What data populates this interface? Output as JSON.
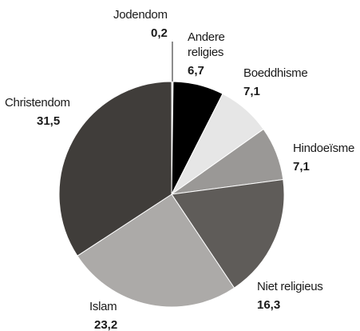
{
  "chart_data": {
    "type": "pie",
    "slices": [
      {
        "label": "Jodendom",
        "value": 0.2,
        "value_text": "0,2",
        "color": "#d9d9d9"
      },
      {
        "label": "Andere religies",
        "label_lines": [
          "Andere",
          "religies"
        ],
        "value": 6.7,
        "value_text": "6,7",
        "color": "#000000"
      },
      {
        "label": "Boeddhisme",
        "value": 7.1,
        "value_text": "7,1",
        "color": "#e6e6e6"
      },
      {
        "label": "Hindoeïsme",
        "value": 7.1,
        "value_text": "7,1",
        "color": "#9a9896"
      },
      {
        "label": "Niet religieus",
        "value": 16.3,
        "value_text": "16,3",
        "color": "#5f5c59"
      },
      {
        "label": "Islam",
        "value": 23.2,
        "value_text": "23,2",
        "color": "#acaaa8"
      },
      {
        "label": "Christendom",
        "value": 31.5,
        "value_text": "31,5",
        "color": "#403d3a"
      }
    ]
  }
}
